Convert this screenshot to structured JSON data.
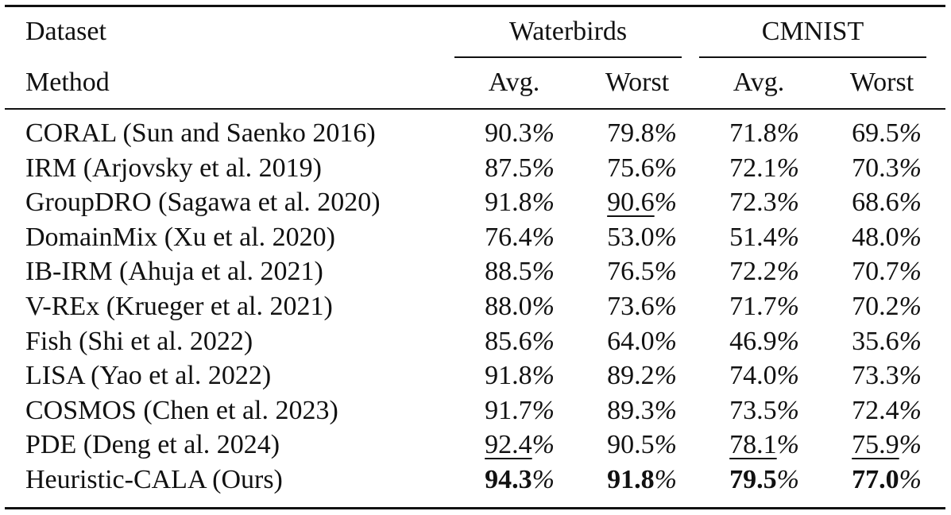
{
  "table": {
    "header": {
      "dataset_label": "Dataset",
      "method_label": "Method",
      "groups": [
        {
          "name": "Waterbirds",
          "cols": [
            "Avg.",
            "Worst"
          ]
        },
        {
          "name": "CMNIST",
          "cols": [
            "Avg.",
            "Worst"
          ]
        }
      ]
    },
    "rows": [
      {
        "method": "CORAL (Sun and Saenko 2016)",
        "values": [
          {
            "num": "90.3",
            "pct": "%",
            "style": "normal"
          },
          {
            "num": "79.8",
            "pct": "%",
            "style": "normal"
          },
          {
            "num": "71.8",
            "pct": "%",
            "style": "normal"
          },
          {
            "num": "69.5",
            "pct": "%",
            "style": "normal"
          }
        ]
      },
      {
        "method": "IRM (Arjovsky et al. 2019)",
        "values": [
          {
            "num": "87.5",
            "pct": "%",
            "style": "normal"
          },
          {
            "num": "75.6",
            "pct": "%",
            "style": "normal"
          },
          {
            "num": "72.1",
            "pct": "%",
            "style": "normal"
          },
          {
            "num": "70.3",
            "pct": "%",
            "style": "normal"
          }
        ]
      },
      {
        "method": "GroupDRO (Sagawa et al. 2020)",
        "values": [
          {
            "num": "91.8",
            "pct": "%",
            "style": "normal"
          },
          {
            "num": "90.6",
            "pct": "%",
            "style": "underline"
          },
          {
            "num": "72.3",
            "pct": "%",
            "style": "normal"
          },
          {
            "num": "68.6",
            "pct": "%",
            "style": "normal"
          }
        ]
      },
      {
        "method": "DomainMix (Xu et al. 2020)",
        "values": [
          {
            "num": "76.4",
            "pct": "%",
            "style": "normal"
          },
          {
            "num": "53.0",
            "pct": "%",
            "style": "normal"
          },
          {
            "num": "51.4",
            "pct": "%",
            "style": "normal"
          },
          {
            "num": "48.0",
            "pct": "%",
            "style": "normal"
          }
        ]
      },
      {
        "method": "IB-IRM (Ahuja et al. 2021)",
        "values": [
          {
            "num": "88.5",
            "pct": "%",
            "style": "normal"
          },
          {
            "num": "76.5",
            "pct": "%",
            "style": "normal"
          },
          {
            "num": "72.2",
            "pct": "%",
            "style": "normal"
          },
          {
            "num": "70.7",
            "pct": "%",
            "style": "normal"
          }
        ]
      },
      {
        "method": "V-REx (Krueger et al. 2021)",
        "values": [
          {
            "num": "88.0",
            "pct": "%",
            "style": "normal"
          },
          {
            "num": "73.6",
            "pct": "%",
            "style": "normal"
          },
          {
            "num": "71.7",
            "pct": "%",
            "style": "normal"
          },
          {
            "num": "70.2",
            "pct": "%",
            "style": "normal"
          }
        ]
      },
      {
        "method": "Fish (Shi et al. 2022)",
        "values": [
          {
            "num": "85.6",
            "pct": "%",
            "style": "normal"
          },
          {
            "num": "64.0",
            "pct": "%",
            "style": "normal"
          },
          {
            "num": "46.9",
            "pct": "%",
            "style": "normal"
          },
          {
            "num": "35.6",
            "pct": "%",
            "style": "normal"
          }
        ]
      },
      {
        "method": "LISA (Yao et al. 2022)",
        "values": [
          {
            "num": "91.8",
            "pct": "%",
            "style": "normal"
          },
          {
            "num": "89.2",
            "pct": "%",
            "style": "normal"
          },
          {
            "num": "74.0",
            "pct": "%",
            "style": "normal"
          },
          {
            "num": "73.3",
            "pct": "%",
            "style": "normal"
          }
        ]
      },
      {
        "method": "COSMOS (Chen et al. 2023)",
        "values": [
          {
            "num": "91.7",
            "pct": "%",
            "style": "normal"
          },
          {
            "num": "89.3",
            "pct": "%",
            "style": "normal"
          },
          {
            "num": "73.5",
            "pct": "%",
            "style": "normal"
          },
          {
            "num": "72.4",
            "pct": "%",
            "style": "normal"
          }
        ]
      },
      {
        "method": "PDE (Deng et al. 2024)",
        "values": [
          {
            "num": "92.4",
            "pct": "%",
            "style": "underline"
          },
          {
            "num": "90.5",
            "pct": "%",
            "style": "normal"
          },
          {
            "num": "78.1",
            "pct": "%",
            "style": "underline"
          },
          {
            "num": "75.9",
            "pct": "%",
            "style": "underline"
          }
        ]
      },
      {
        "method": "Heuristic-CALA (Ours)",
        "values": [
          {
            "num": "94.3",
            "pct": "%",
            "style": "bold"
          },
          {
            "num": "91.8",
            "pct": "%",
            "style": "bold"
          },
          {
            "num": "79.5",
            "pct": "%",
            "style": "bold"
          },
          {
            "num": "77.0",
            "pct": "%",
            "style": "bold"
          }
        ]
      }
    ]
  }
}
